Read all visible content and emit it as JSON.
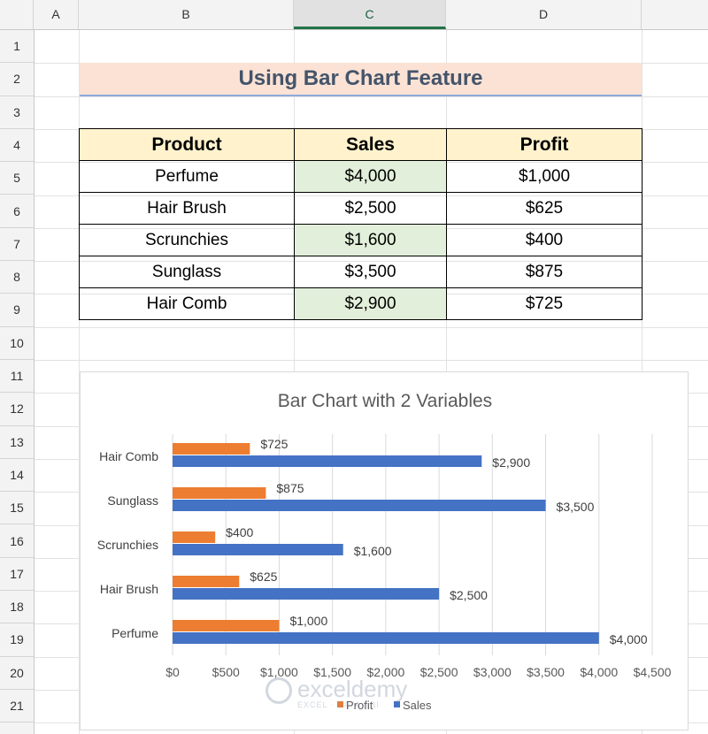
{
  "columns": [
    "A",
    "B",
    "C",
    "D"
  ],
  "active_column": "C",
  "rows": [
    "1",
    "2",
    "3",
    "4",
    "5",
    "6",
    "7",
    "8",
    "9",
    "10",
    "11",
    "12",
    "13",
    "14",
    "15",
    "16",
    "17",
    "18",
    "19",
    "20",
    "21"
  ],
  "title": "Using Bar Chart Feature",
  "table": {
    "headers": [
      "Product",
      "Sales",
      "Profit"
    ],
    "rows": [
      {
        "product": "Perfume",
        "sales": "$4,000",
        "profit": "$1,000"
      },
      {
        "product": "Hair Brush",
        "sales": "$2,500",
        "profit": "$625"
      },
      {
        "product": "Scrunchies",
        "sales": "$1,600",
        "profit": "$400"
      },
      {
        "product": "Sunglass",
        "sales": "$3,500",
        "profit": "$875"
      },
      {
        "product": "Hair Comb",
        "sales": "$2,900",
        "profit": "$725"
      }
    ]
  },
  "chart_data": {
    "type": "bar",
    "orientation": "horizontal",
    "title": "Bar Chart with 2 Variables",
    "categories": [
      "Perfume",
      "Hair Brush",
      "Scrunchies",
      "Sunglass",
      "Hair Comb"
    ],
    "series": [
      {
        "name": "Profit",
        "values": [
          1000,
          625,
          400,
          875,
          725
        ],
        "labels": [
          "$1,000",
          "$625",
          "$400",
          "$875",
          "$725"
        ],
        "color": "#ed7d31"
      },
      {
        "name": "Sales",
        "values": [
          4000,
          2500,
          1600,
          3500,
          2900
        ],
        "labels": [
          "$4,000",
          "$2,500",
          "$1,600",
          "$3,500",
          "$2,900"
        ],
        "color": "#4472c4"
      }
    ],
    "xlim": [
      0,
      4500
    ],
    "xticks": [
      0,
      500,
      1000,
      1500,
      2000,
      2500,
      3000,
      3500,
      4000,
      4500
    ],
    "xtick_labels": [
      "$0",
      "$500",
      "$1,000",
      "$1,500",
      "$2,000",
      "$2,500",
      "$3,000",
      "$3,500",
      "$4,000",
      "$4,500"
    ],
    "grid": true,
    "legend": "bottom"
  },
  "watermark": {
    "text": "exceldemy",
    "sub": "EXCEL · DATA · BI"
  },
  "colors": {
    "header_fill": "#fff2cc",
    "highlight_fill": "#e2efda",
    "title_fill": "#fbe2d5",
    "accent": "#217346"
  }
}
